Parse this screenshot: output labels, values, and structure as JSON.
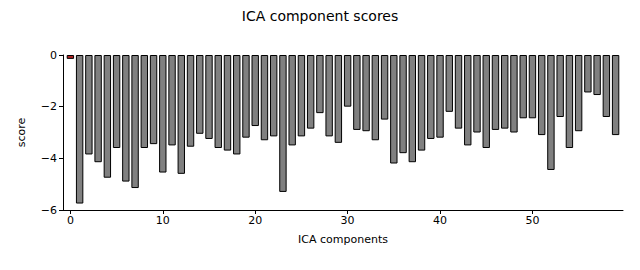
{
  "chart_data": {
    "type": "bar",
    "title": "ICA component scores",
    "x_label": "ICA components",
    "y_label": "score",
    "x": [
      0,
      1,
      2,
      3,
      4,
      5,
      6,
      7,
      8,
      9,
      10,
      11,
      12,
      13,
      14,
      15,
      16,
      17,
      18,
      19,
      20,
      21,
      22,
      23,
      24,
      25,
      26,
      27,
      28,
      29,
      30,
      31,
      32,
      33,
      34,
      35,
      36,
      37,
      38,
      39,
      40,
      41,
      42,
      43,
      44,
      45,
      46,
      47,
      48,
      49,
      50,
      51,
      52,
      53,
      54,
      55,
      56,
      57,
      58,
      59
    ],
    "values": [
      -0.15,
      -5.75,
      -3.85,
      -4.15,
      -4.75,
      -3.6,
      -4.9,
      -5.15,
      -3.6,
      -3.45,
      -4.55,
      -3.5,
      -4.6,
      -3.55,
      -3.05,
      -3.25,
      -3.6,
      -3.7,
      -3.85,
      -3.2,
      -2.75,
      -3.3,
      -3.15,
      -5.3,
      -3.5,
      -3.15,
      -2.85,
      -2.25,
      -3.15,
      -3.4,
      -2.0,
      -2.9,
      -2.95,
      -3.3,
      -2.5,
      -4.2,
      -3.8,
      -4.15,
      -3.7,
      -3.25,
      -3.2,
      -2.2,
      -2.85,
      -3.5,
      -3.0,
      -3.6,
      -2.9,
      -2.85,
      -3.0,
      -2.45,
      -2.45,
      -3.1,
      -4.45,
      -2.4,
      -3.6,
      -2.95,
      -1.45,
      -1.55,
      -2.4,
      -3.1
    ],
    "colors": [
      "#b22222",
      "#808080",
      "#808080",
      "#808080",
      "#808080",
      "#808080",
      "#808080",
      "#808080",
      "#808080",
      "#808080",
      "#808080",
      "#808080",
      "#808080",
      "#808080",
      "#808080",
      "#808080",
      "#808080",
      "#808080",
      "#808080",
      "#808080",
      "#808080",
      "#808080",
      "#808080",
      "#808080",
      "#808080",
      "#808080",
      "#808080",
      "#808080",
      "#808080",
      "#808080",
      "#808080",
      "#808080",
      "#808080",
      "#808080",
      "#808080",
      "#808080",
      "#808080",
      "#808080",
      "#808080",
      "#808080",
      "#808080",
      "#808080",
      "#808080",
      "#808080",
      "#808080",
      "#808080",
      "#808080",
      "#808080",
      "#808080",
      "#808080",
      "#808080",
      "#808080",
      "#808080",
      "#808080",
      "#808080",
      "#808080",
      "#808080",
      "#808080",
      "#808080",
      "#808080"
    ],
    "xlim": [
      -0.8,
      59.8
    ],
    "xticks": [
      0,
      10,
      20,
      30,
      40,
      50
    ],
    "ylim": [
      -6,
      0
    ],
    "yticks": [
      {
        "value": -6,
        "label": "−6"
      },
      {
        "value": -4,
        "label": "−4"
      },
      {
        "value": -2,
        "label": "−2"
      },
      0
    ],
    "grid": false
  }
}
